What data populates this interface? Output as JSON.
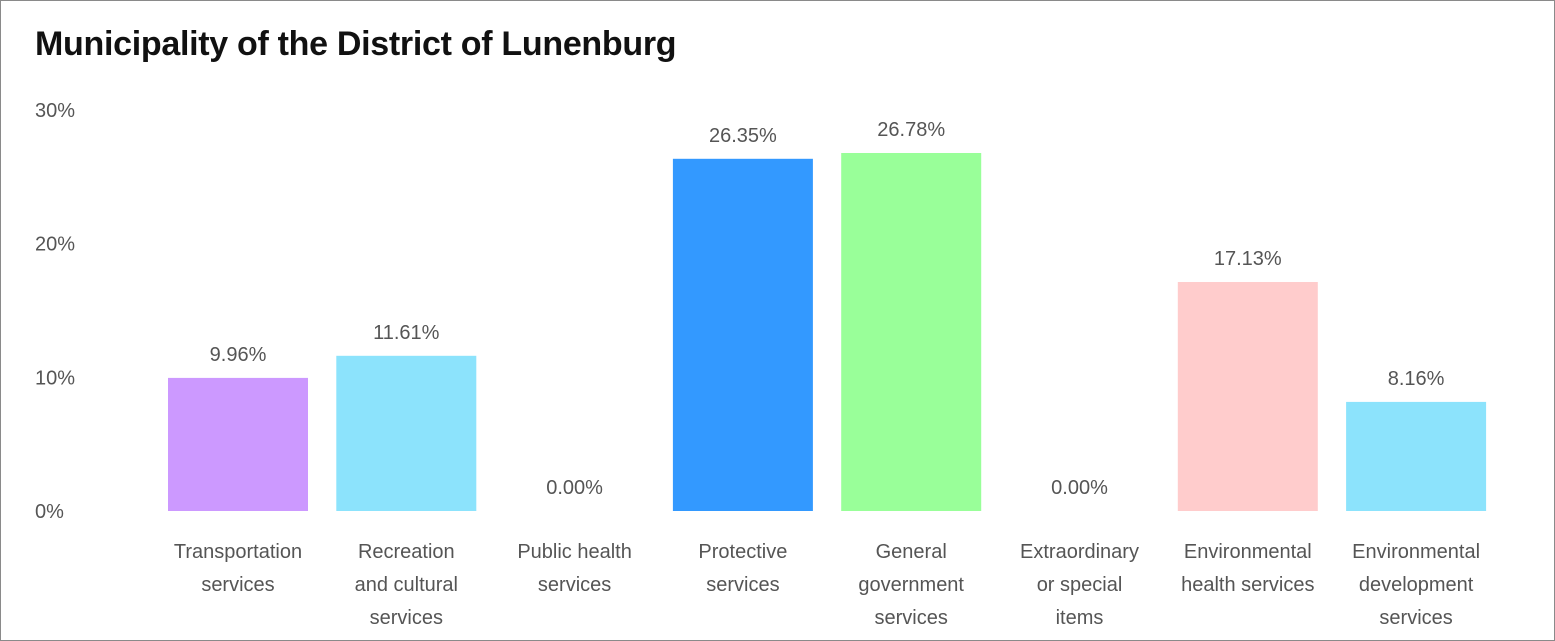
{
  "chart_data": {
    "type": "bar",
    "title": "Municipality of the District of Lunenburg",
    "xlabel": "",
    "ylabel": "",
    "ylim": [
      0,
      30
    ],
    "yticks": [
      0,
      10,
      20,
      30
    ],
    "ytick_labels": [
      "0%",
      "10%",
      "20%",
      "30%"
    ],
    "grid": false,
    "legend": "none",
    "categories": [
      [
        "Transportation",
        "services"
      ],
      [
        "Recreation",
        "and cultural",
        "services"
      ],
      [
        "Public health",
        "services"
      ],
      [
        "Protective",
        "services"
      ],
      [
        "General",
        "government",
        "services"
      ],
      [
        "Extraordinary",
        "or special",
        "items"
      ],
      [
        "Environmental",
        "health services"
      ],
      [
        "Environmental",
        "development",
        "services"
      ]
    ],
    "values": [
      9.96,
      11.61,
      0.0,
      26.35,
      26.78,
      0.0,
      17.13,
      8.16
    ],
    "value_labels": [
      "9.96%",
      "11.61%",
      "0.00%",
      "26.35%",
      "26.78%",
      "0.00%",
      "17.13%",
      "8.16%"
    ],
    "colors": [
      "#cc99ff",
      "#8ce3fc",
      "#cccccc",
      "#3399ff",
      "#99ff99",
      "#cccccc",
      "#ffcccc",
      "#8ce3fc"
    ]
  }
}
